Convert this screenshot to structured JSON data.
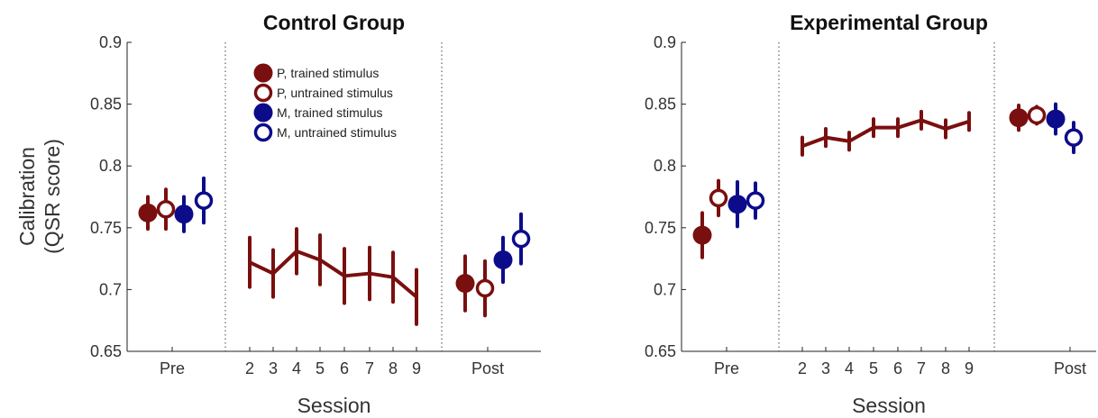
{
  "figure": {
    "ylabel_line1": "Calibration",
    "ylabel_line2": "(QSR score)",
    "xlabel": "Session"
  },
  "colors": {
    "P": "#7a0f0f",
    "M": "#0c0c8a",
    "axis": "#222222"
  },
  "legend": {
    "placement": "inside-top, left panel",
    "entries": [
      {
        "label": "P, trained stimulus",
        "color": "#7a0f0f",
        "filled": true
      },
      {
        "label": "P, untrained stimulus",
        "color": "#7a0f0f",
        "filled": false
      },
      {
        "label": "M, trained stimulus",
        "color": "#0c0c8a",
        "filled": true
      },
      {
        "label": "M, untrained stimulus",
        "color": "#0c0c8a",
        "filled": false
      }
    ]
  },
  "chart_data": [
    {
      "type": "scatter",
      "title": "Control Group",
      "ylim": [
        0.65,
        0.9
      ],
      "yticks": [
        "0.65",
        "0.7",
        "0.75",
        "0.8",
        "0.85",
        "0.9"
      ],
      "xticks": [
        "Pre",
        "2",
        "3",
        "4",
        "5",
        "6",
        "7",
        "8",
        "9",
        "Post"
      ],
      "grid": false,
      "separators": [
        "between Pre and 2",
        "between 9 and Post"
      ],
      "pre": [
        {
          "series": "P, trained stimulus",
          "y": 0.762,
          "err": 0.013
        },
        {
          "series": "P, untrained stimulus",
          "y": 0.765,
          "err": 0.016
        },
        {
          "series": "M, trained stimulus",
          "y": 0.761,
          "err": 0.014
        },
        {
          "series": "M, untrained stimulus",
          "y": 0.772,
          "err": 0.018
        }
      ],
      "sessions": {
        "x": [
          "2",
          "3",
          "4",
          "5",
          "6",
          "7",
          "8",
          "9"
        ],
        "y": [
          0.722,
          0.713,
          0.731,
          0.724,
          0.711,
          0.713,
          0.71,
          0.694
        ],
        "err": [
          0.02,
          0.019,
          0.018,
          0.02,
          0.022,
          0.021,
          0.02,
          0.022
        ]
      },
      "post": [
        {
          "series": "P, trained stimulus",
          "y": 0.705,
          "err": 0.022
        },
        {
          "series": "P, untrained stimulus",
          "y": 0.701,
          "err": 0.022
        },
        {
          "series": "M, trained stimulus",
          "y": 0.724,
          "err": 0.018
        },
        {
          "series": "M, untrained stimulus",
          "y": 0.741,
          "err": 0.02
        }
      ]
    },
    {
      "type": "scatter",
      "title": "Experimental Group",
      "ylim": [
        0.65,
        0.9
      ],
      "yticks": [
        "0.65",
        "0.7",
        "0.75",
        "0.8",
        "0.85",
        "0.9"
      ],
      "xticks": [
        "Pre",
        "2",
        "3",
        "4",
        "5",
        "6",
        "7",
        "8",
        "9",
        "Post"
      ],
      "grid": false,
      "separators": [
        "between Pre and 2",
        "between 9 and Post"
      ],
      "pre": [
        {
          "series": "P, trained stimulus",
          "y": 0.744,
          "err": 0.018
        },
        {
          "series": "P, untrained stimulus",
          "y": 0.774,
          "err": 0.014
        },
        {
          "series": "M, trained stimulus",
          "y": 0.769,
          "err": 0.018
        },
        {
          "series": "M, untrained stimulus",
          "y": 0.772,
          "err": 0.014
        }
      ],
      "sessions": {
        "x": [
          "2",
          "3",
          "4",
          "5",
          "6",
          "7",
          "8",
          "9"
        ],
        "y": [
          0.816,
          0.823,
          0.82,
          0.831,
          0.831,
          0.837,
          0.83,
          0.836
        ],
        "err": [
          0.007,
          0.007,
          0.007,
          0.007,
          0.007,
          0.007,
          0.007,
          0.007
        ]
      },
      "post": [
        {
          "series": "P, trained stimulus",
          "y": 0.839,
          "err": 0.01
        },
        {
          "series": "P, untrained stimulus",
          "y": 0.841,
          "err": 0.007
        },
        {
          "series": "M, trained stimulus",
          "y": 0.838,
          "err": 0.012
        },
        {
          "series": "M, untrained stimulus",
          "y": 0.823,
          "err": 0.012
        }
      ]
    }
  ]
}
